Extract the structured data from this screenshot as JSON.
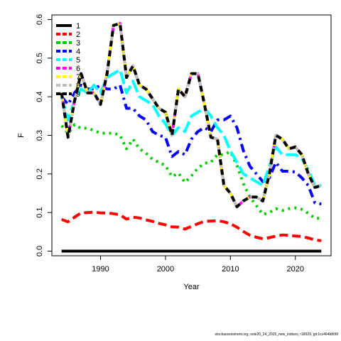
{
  "footnote": "stockassessment.org, sole20_24_2025_new_indices, r18929, git:1cc464b806f",
  "colors": [
    "#000000",
    "#ff0000",
    "#00cd00",
    "#0000ff",
    "#00ffff",
    "#ff00ff",
    "#ffff00",
    "#bebebe",
    "#000000"
  ],
  "chart_data": {
    "type": "line",
    "xlabel": "Year",
    "ylabel": "F",
    "xlim": [
      1982.5,
      2025.5
    ],
    "ylim": [
      -0.012,
      0.612
    ],
    "x_ticks": [
      1990,
      2000,
      2010,
      2020
    ],
    "y_ticks": [
      "0.0",
      "0.1",
      "0.2",
      "0.3",
      "0.4",
      "0.5",
      "0.6"
    ],
    "grid": false,
    "legend_position": "top-left",
    "x": [
      1984,
      1985,
      1986,
      1987,
      1988,
      1989,
      1990,
      1991,
      1992,
      1993,
      1994,
      1995,
      1996,
      1997,
      1998,
      1999,
      2000,
      2001,
      2002,
      2003,
      2004,
      2005,
      2006,
      2007,
      2008,
      2009,
      2010,
      2011,
      2012,
      2013,
      2014,
      2015,
      2016,
      2017,
      2018,
      2019,
      2020,
      2021,
      2022,
      2023,
      2024
    ],
    "series": [
      {
        "name": "1",
        "values": [
          0,
          0,
          0,
          0,
          0,
          0,
          0,
          0,
          0,
          0,
          0,
          0,
          0,
          0,
          0,
          0,
          0,
          0,
          0,
          0,
          0,
          0,
          0,
          0,
          0,
          0,
          0,
          0,
          0,
          0,
          0,
          0,
          0,
          0,
          0,
          0,
          0,
          0,
          0,
          0,
          0
        ]
      },
      {
        "name": "2",
        "values": [
          0.082,
          0.076,
          0.088,
          0.099,
          0.1,
          0.101,
          0.099,
          0.099,
          0.097,
          0.094,
          0.083,
          0.088,
          0.086,
          0.081,
          0.077,
          0.072,
          0.068,
          0.063,
          0.062,
          0.057,
          0.064,
          0.071,
          0.077,
          0.078,
          0.079,
          0.076,
          0.071,
          0.062,
          0.051,
          0.041,
          0.036,
          0.032,
          0.035,
          0.039,
          0.042,
          0.041,
          0.039,
          0.038,
          0.034,
          0.029,
          0.027
        ]
      },
      {
        "name": "3",
        "values": [
          0.325,
          0.305,
          0.328,
          0.318,
          0.319,
          0.312,
          0.306,
          0.305,
          0.306,
          0.3,
          0.265,
          0.29,
          0.265,
          0.254,
          0.238,
          0.23,
          0.222,
          0.193,
          0.202,
          0.178,
          0.195,
          0.215,
          0.228,
          0.23,
          0.25,
          0.25,
          0.258,
          0.222,
          0.175,
          0.14,
          0.118,
          0.095,
          0.1,
          0.11,
          0.105,
          0.11,
          0.112,
          0.108,
          0.098,
          0.085,
          0.085
        ]
      },
      {
        "name": "4",
        "values": [
          0.4,
          0.38,
          0.41,
          0.43,
          0.42,
          0.42,
          0.43,
          0.42,
          0.42,
          0.43,
          0.37,
          0.37,
          0.35,
          0.34,
          0.31,
          0.3,
          0.295,
          0.245,
          0.258,
          0.25,
          0.29,
          0.31,
          0.32,
          0.31,
          0.34,
          0.34,
          0.35,
          0.32,
          0.26,
          0.22,
          0.2,
          0.18,
          0.19,
          0.23,
          0.207,
          0.207,
          0.205,
          0.19,
          0.17,
          0.125,
          0.122
        ]
      },
      {
        "name": "5",
        "values": [
          0.4,
          0.34,
          0.39,
          0.42,
          0.41,
          0.43,
          0.41,
          0.45,
          0.46,
          0.47,
          0.41,
          0.44,
          0.4,
          0.39,
          0.38,
          0.35,
          0.33,
          0.3,
          0.32,
          0.31,
          0.35,
          0.36,
          0.37,
          0.35,
          0.32,
          0.3,
          0.26,
          0.23,
          0.2,
          0.19,
          0.18,
          0.17,
          0.22,
          0.27,
          0.25,
          0.25,
          0.25,
          0.24,
          0.21,
          0.17,
          0.17
        ]
      },
      {
        "name": "6",
        "values": [
          0.41,
          0.295,
          0.39,
          0.46,
          0.41,
          0.41,
          0.38,
          0.46,
          0.585,
          0.59,
          0.45,
          0.48,
          0.43,
          0.42,
          0.395,
          0.37,
          0.36,
          0.3,
          0.42,
          0.4,
          0.46,
          0.46,
          0.38,
          0.295,
          0.29,
          0.17,
          0.15,
          0.115,
          0.13,
          0.14,
          0.14,
          0.13,
          0.2,
          0.3,
          0.29,
          0.265,
          0.27,
          0.25,
          0.2,
          0.165,
          0.17
        ]
      },
      {
        "name": "7",
        "values": [
          0.41,
          0.295,
          0.39,
          0.46,
          0.41,
          0.41,
          0.38,
          0.46,
          0.585,
          0.59,
          0.45,
          0.48,
          0.43,
          0.42,
          0.395,
          0.37,
          0.36,
          0.3,
          0.42,
          0.4,
          0.46,
          0.46,
          0.38,
          0.295,
          0.29,
          0.17,
          0.15,
          0.115,
          0.13,
          0.14,
          0.14,
          0.13,
          0.2,
          0.3,
          0.29,
          0.265,
          0.27,
          0.25,
          0.2,
          0.165,
          0.17
        ]
      },
      {
        "name": "8",
        "values": [
          0.41,
          0.295,
          0.39,
          0.46,
          0.41,
          0.41,
          0.38,
          0.46,
          0.585,
          0.59,
          0.45,
          0.48,
          0.43,
          0.42,
          0.395,
          0.37,
          0.36,
          0.3,
          0.42,
          0.4,
          0.46,
          0.46,
          0.38,
          0.295,
          0.29,
          0.17,
          0.15,
          0.115,
          0.13,
          0.14,
          0.14,
          0.13,
          0.2,
          0.3,
          0.29,
          0.265,
          0.27,
          0.25,
          0.2,
          0.165,
          0.17
        ]
      },
      {
        "name": "9",
        "values": [
          0.41,
          0.295,
          0.39,
          0.46,
          0.41,
          0.41,
          0.38,
          0.46,
          0.585,
          0.59,
          0.45,
          0.48,
          0.43,
          0.42,
          0.395,
          0.37,
          0.36,
          0.3,
          0.42,
          0.4,
          0.46,
          0.46,
          0.38,
          0.295,
          0.29,
          0.17,
          0.15,
          0.115,
          0.13,
          0.14,
          0.14,
          0.13,
          0.2,
          0.3,
          0.29,
          0.265,
          0.27,
          0.25,
          0.2,
          0.165,
          0.17
        ]
      }
    ]
  }
}
